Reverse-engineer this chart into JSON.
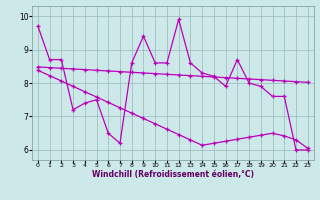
{
  "x": [
    0,
    1,
    2,
    3,
    4,
    5,
    6,
    7,
    8,
    9,
    10,
    11,
    12,
    13,
    14,
    15,
    16,
    17,
    18,
    19,
    20,
    21,
    22,
    23
  ],
  "y_main": [
    9.7,
    8.7,
    8.7,
    7.2,
    7.4,
    7.5,
    6.5,
    6.2,
    8.6,
    9.4,
    8.6,
    8.6,
    9.9,
    8.6,
    8.3,
    8.2,
    7.9,
    8.7,
    8.0,
    7.9,
    7.6,
    7.6,
    6.0,
    6.0
  ],
  "y_upper": [
    8.48,
    8.46,
    8.44,
    8.42,
    8.4,
    8.38,
    8.36,
    8.34,
    8.32,
    8.3,
    8.28,
    8.26,
    8.24,
    8.22,
    8.2,
    8.18,
    8.16,
    8.14,
    8.12,
    8.1,
    8.08,
    8.06,
    8.04,
    8.02
  ],
  "y_lower": [
    8.38,
    8.22,
    8.06,
    7.9,
    7.74,
    7.58,
    7.42,
    7.26,
    7.1,
    6.94,
    6.78,
    6.62,
    6.46,
    6.3,
    6.14,
    6.2,
    6.26,
    6.32,
    6.38,
    6.44,
    6.5,
    6.42,
    6.3,
    6.05
  ],
  "color_main": "#bb00bb",
  "color_trend": "#bb00bb",
  "bg_color": "#cce8e8",
  "grid_color": "#9ab8b8",
  "xlabel": "Windchill (Refroidissement éolien,°C)",
  "ylim": [
    5.7,
    10.3
  ],
  "xlim": [
    -0.5,
    23.5
  ],
  "yticks": [
    6,
    7,
    8,
    9,
    10
  ],
  "xticks": [
    0,
    1,
    2,
    3,
    4,
    5,
    6,
    7,
    8,
    9,
    10,
    11,
    12,
    13,
    14,
    15,
    16,
    17,
    18,
    19,
    20,
    21,
    22,
    23
  ]
}
